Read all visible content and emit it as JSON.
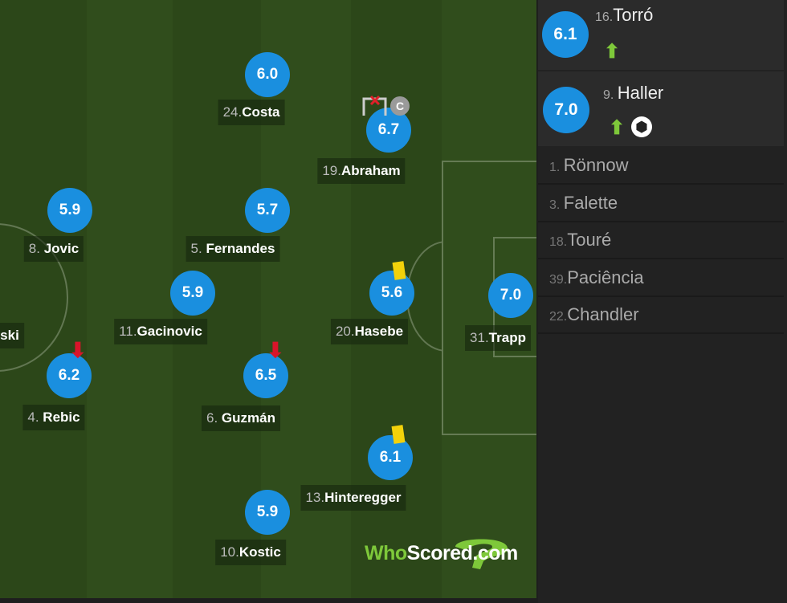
{
  "pitch_players": [
    {
      "num": "24.",
      "name": "Costa",
      "rating": "6.0"
    },
    {
      "num": "19.",
      "name": "Abraham",
      "rating": "6.7",
      "captain": "C"
    },
    {
      "num": "8. ",
      "name": "Jovic",
      "rating": "5.9"
    },
    {
      "num": "5. ",
      "name": "Fernandes",
      "rating": "5.7"
    },
    {
      "num": "11.",
      "name": "Gacinovic",
      "rating": "5.9"
    },
    {
      "num": "20.",
      "name": "Hasebe",
      "rating": "5.6"
    },
    {
      "num": "31.",
      "name": "Trapp",
      "rating": "7.0"
    },
    {
      "num": "",
      "name": "ski",
      "rating": ""
    },
    {
      "num": "4. ",
      "name": "Rebic",
      "rating": "6.2"
    },
    {
      "num": "6. ",
      "name": "Guzmán",
      "rating": "6.5"
    },
    {
      "num": "13.",
      "name": "Hinteregger",
      "rating": "6.1"
    },
    {
      "num": "10.",
      "name": "Kostic",
      "rating": "5.9"
    }
  ],
  "subs": [
    {
      "num": "16.",
      "name": "Torró",
      "rating": "6.1",
      "icons": [
        "sub-on-arrow"
      ]
    },
    {
      "num": "9. ",
      "name": "Haller",
      "rating": "7.0",
      "icons": [
        "sub-on-arrow",
        "goal-ball"
      ]
    }
  ],
  "bench": [
    {
      "num": "1. ",
      "name": "Rönnow"
    },
    {
      "num": "3. ",
      "name": "Falette"
    },
    {
      "num": "18.",
      "name": "Touré"
    },
    {
      "num": "39.",
      "name": "Paciência"
    },
    {
      "num": "22.",
      "name": "Chandler"
    }
  ],
  "logo": {
    "part1": "Who",
    "part2": "Scored",
    "part3": ".com"
  },
  "colors": {
    "rating": "#1a8fdf",
    "yellow_card": "#f2d20b",
    "sub_off": "#d9142a",
    "sub_on": "#7ec83a"
  }
}
